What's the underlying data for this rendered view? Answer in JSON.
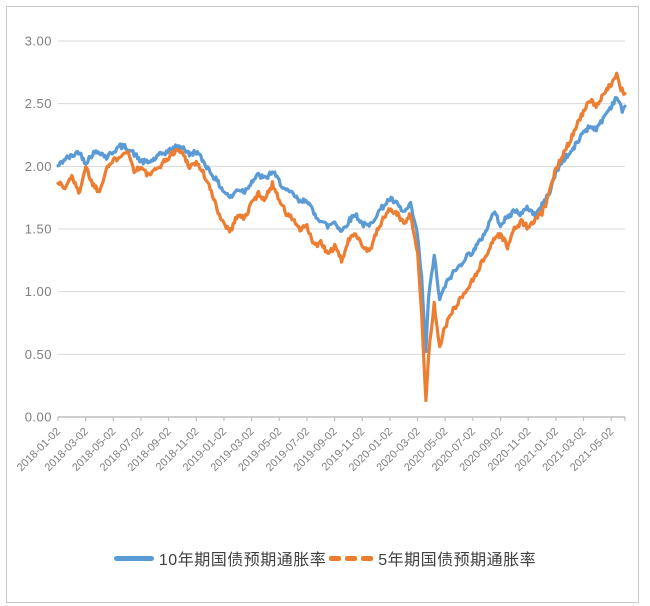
{
  "chart_data": {
    "type": "line",
    "title": "",
    "xlabel": "",
    "ylabel": "",
    "grid": true,
    "legend_position": "bottom",
    "y_axis": {
      "min": 0,
      "max": 3,
      "tick_step": 0.5,
      "tick_labels": [
        "3.00",
        "2.50",
        "2.00",
        "1.50",
        "1.00",
        "0.50",
        "0.00"
      ]
    },
    "x_axis": {
      "unit": "months since 2018-01-02",
      "tick_interval_months": 2,
      "tick_labels": [
        "2018-01-02",
        "2018-03-02",
        "2018-05-02",
        "2018-07-02",
        "2018-09-02",
        "2018-11-02",
        "2019-01-02",
        "2019-03-02",
        "2019-05-02",
        "2019-07-02",
        "2019-09-02",
        "2019-11-02",
        "2020-01-02",
        "2020-03-02",
        "2020-05-02",
        "2020-07-02",
        "2020-09-02",
        "2020-11-02",
        "2021-01-02",
        "2021-03-02",
        "2021-05-02"
      ]
    },
    "series": [
      {
        "name": "10年期国债预期通胀率",
        "color": "#5B9BD5",
        "line_style": "solid",
        "points": [
          [
            0,
            2.0
          ],
          [
            0.5,
            2.06
          ],
          [
            1,
            2.08
          ],
          [
            1.5,
            2.12
          ],
          [
            2,
            2.03
          ],
          [
            2.5,
            2.1
          ],
          [
            3,
            2.12
          ],
          [
            3.5,
            2.07
          ],
          [
            4,
            2.12
          ],
          [
            4.5,
            2.16
          ],
          [
            5,
            2.15
          ],
          [
            5.5,
            2.1
          ],
          [
            6,
            2.04
          ],
          [
            6.5,
            2.03
          ],
          [
            7,
            2.06
          ],
          [
            7.5,
            2.1
          ],
          [
            8,
            2.12
          ],
          [
            8.5,
            2.15
          ],
          [
            9,
            2.16
          ],
          [
            9.5,
            2.09
          ],
          [
            10,
            2.12
          ],
          [
            10.5,
            2.04
          ],
          [
            11,
            1.96
          ],
          [
            11.5,
            1.88
          ],
          [
            12,
            1.8
          ],
          [
            12.5,
            1.75
          ],
          [
            13,
            1.82
          ],
          [
            13.5,
            1.8
          ],
          [
            14,
            1.88
          ],
          [
            14.5,
            1.93
          ],
          [
            15,
            1.9
          ],
          [
            15.5,
            1.96
          ],
          [
            16,
            1.88
          ],
          [
            16.5,
            1.8
          ],
          [
            17,
            1.78
          ],
          [
            17.5,
            1.71
          ],
          [
            18,
            1.74
          ],
          [
            18.5,
            1.62
          ],
          [
            19,
            1.57
          ],
          [
            19.5,
            1.52
          ],
          [
            20,
            1.56
          ],
          [
            20.5,
            1.48
          ],
          [
            21,
            1.56
          ],
          [
            21.5,
            1.62
          ],
          [
            22,
            1.54
          ],
          [
            22.5,
            1.52
          ],
          [
            23,
            1.61
          ],
          [
            23.5,
            1.68
          ],
          [
            24,
            1.74
          ],
          [
            24.5,
            1.7
          ],
          [
            25,
            1.63
          ],
          [
            25.5,
            1.69
          ],
          [
            26,
            1.45
          ],
          [
            26.3,
            1.1
          ],
          [
            26.6,
            0.52
          ],
          [
            26.8,
            0.95
          ],
          [
            27.2,
            1.3
          ],
          [
            27.6,
            0.93
          ],
          [
            28,
            1.05
          ],
          [
            28.5,
            1.14
          ],
          [
            29,
            1.2
          ],
          [
            29.5,
            1.28
          ],
          [
            30,
            1.32
          ],
          [
            30.5,
            1.4
          ],
          [
            31,
            1.5
          ],
          [
            31.5,
            1.64
          ],
          [
            32,
            1.54
          ],
          [
            32.5,
            1.59
          ],
          [
            33,
            1.65
          ],
          [
            33.5,
            1.62
          ],
          [
            34,
            1.67
          ],
          [
            34.5,
            1.61
          ],
          [
            35,
            1.69
          ],
          [
            35.5,
            1.78
          ],
          [
            36,
            1.95
          ],
          [
            36.5,
            2.05
          ],
          [
            37,
            2.1
          ],
          [
            37.5,
            2.18
          ],
          [
            38,
            2.28
          ],
          [
            38.5,
            2.32
          ],
          [
            39,
            2.3
          ],
          [
            39.5,
            2.4
          ],
          [
            40,
            2.48
          ],
          [
            40.4,
            2.56
          ],
          [
            40.8,
            2.44
          ],
          [
            41,
            2.48
          ]
        ]
      },
      {
        "name": "5年期国债预期通胀率",
        "color": "#ED7D31",
        "line_style": "dashed",
        "points": [
          [
            0,
            1.88
          ],
          [
            0.5,
            1.82
          ],
          [
            1,
            1.93
          ],
          [
            1.5,
            1.78
          ],
          [
            2,
            2.0
          ],
          [
            2.5,
            1.86
          ],
          [
            3,
            1.8
          ],
          [
            3.5,
            1.99
          ],
          [
            4,
            2.04
          ],
          [
            4.5,
            2.09
          ],
          [
            5,
            2.13
          ],
          [
            5.5,
            1.97
          ],
          [
            6,
            1.99
          ],
          [
            6.5,
            1.93
          ],
          [
            7,
            1.96
          ],
          [
            7.5,
            2.02
          ],
          [
            8,
            2.07
          ],
          [
            8.5,
            2.13
          ],
          [
            9,
            2.11
          ],
          [
            9.5,
            2.0
          ],
          [
            10,
            2.03
          ],
          [
            10.5,
            1.95
          ],
          [
            11,
            1.82
          ],
          [
            11.5,
            1.66
          ],
          [
            12,
            1.54
          ],
          [
            12.5,
            1.49
          ],
          [
            13,
            1.62
          ],
          [
            13.5,
            1.58
          ],
          [
            14,
            1.71
          ],
          [
            14.5,
            1.78
          ],
          [
            15,
            1.74
          ],
          [
            15.5,
            1.86
          ],
          [
            16,
            1.74
          ],
          [
            16.5,
            1.62
          ],
          [
            17,
            1.58
          ],
          [
            17.5,
            1.49
          ],
          [
            18,
            1.52
          ],
          [
            18.5,
            1.37
          ],
          [
            19,
            1.39
          ],
          [
            19.5,
            1.3
          ],
          [
            20,
            1.36
          ],
          [
            20.5,
            1.25
          ],
          [
            21,
            1.4
          ],
          [
            21.5,
            1.48
          ],
          [
            22,
            1.37
          ],
          [
            22.5,
            1.32
          ],
          [
            23,
            1.46
          ],
          [
            23.5,
            1.58
          ],
          [
            24,
            1.66
          ],
          [
            24.5,
            1.62
          ],
          [
            25,
            1.55
          ],
          [
            25.5,
            1.62
          ],
          [
            26,
            1.3
          ],
          [
            26.3,
            0.8
          ],
          [
            26.6,
            0.13
          ],
          [
            26.8,
            0.5
          ],
          [
            27.2,
            0.9
          ],
          [
            27.6,
            0.57
          ],
          [
            28,
            0.72
          ],
          [
            28.5,
            0.84
          ],
          [
            29,
            0.93
          ],
          [
            29.5,
            1.0
          ],
          [
            30,
            1.1
          ],
          [
            30.5,
            1.2
          ],
          [
            31,
            1.3
          ],
          [
            31.5,
            1.42
          ],
          [
            32,
            1.46
          ],
          [
            32.5,
            1.36
          ],
          [
            33,
            1.5
          ],
          [
            33.5,
            1.56
          ],
          [
            34,
            1.51
          ],
          [
            34.5,
            1.57
          ],
          [
            35,
            1.63
          ],
          [
            35.5,
            1.77
          ],
          [
            36,
            1.98
          ],
          [
            36.5,
            2.1
          ],
          [
            37,
            2.2
          ],
          [
            37.5,
            2.33
          ],
          [
            38,
            2.44
          ],
          [
            38.5,
            2.52
          ],
          [
            39,
            2.48
          ],
          [
            39.5,
            2.6
          ],
          [
            40,
            2.65
          ],
          [
            40.4,
            2.72
          ],
          [
            40.7,
            2.62
          ],
          [
            41,
            2.58
          ]
        ]
      }
    ]
  },
  "legend": {
    "item_10y": "10年期国债预期通胀率",
    "item_5y": "5年期国债预期通胀率"
  },
  "colors": {
    "series_blue": "#5B9BD5",
    "series_orange": "#ED7D31",
    "gridline": "#D9D9D9",
    "axis": "#BFBFBF",
    "tick_text": "#7F7F7F",
    "legend_text": "#404040",
    "border": "#C9C9C9"
  }
}
